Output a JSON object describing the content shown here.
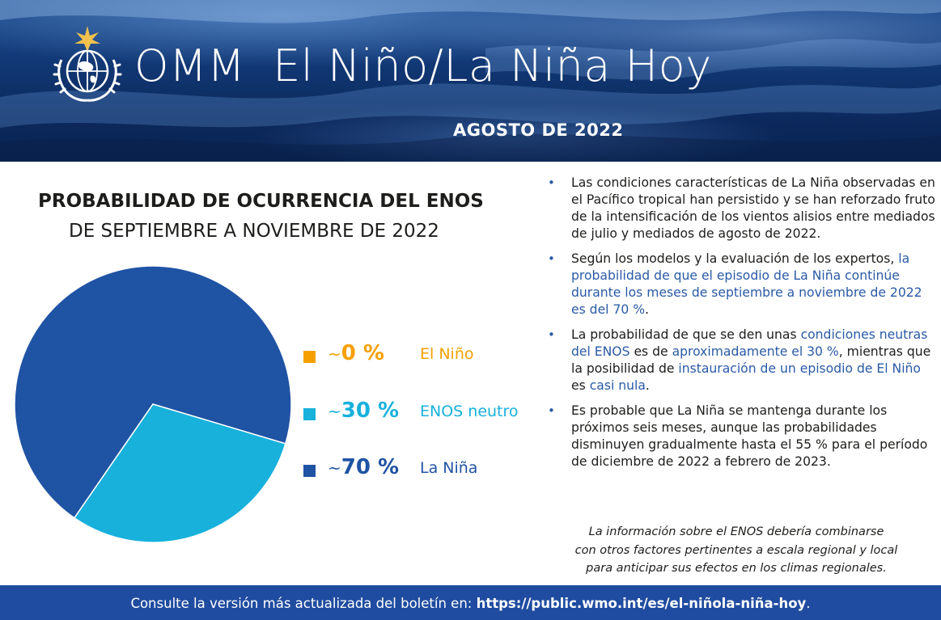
{
  "header": {
    "org": "OMM",
    "title": "El Niño/La Niña Hoy",
    "date": "AGOSTO DE 2022",
    "logo_icon": "wmo-globe-emblem-icon"
  },
  "chart_data": {
    "type": "pie",
    "title": "PROBABILIDAD DE OCURRENCIA DEL ENOS",
    "subtitle": "DE SEPTIEMBRE A NOVIEMBRE DE 2022",
    "slices": [
      {
        "name": "El Niño",
        "value": 0,
        "label": "0 %",
        "color": "#f5a000"
      },
      {
        "name": "ENOS neutro",
        "value": 30,
        "label": "30 %",
        "color": "#17b1dc"
      },
      {
        "name": "La Niña",
        "value": 70,
        "label": "70 %",
        "color": "#1f53a4"
      }
    ],
    "tilde": "~",
    "legend": "right"
  },
  "bullets": [
    {
      "parts": [
        {
          "text": "Las condiciones características de La Niña observadas en el Pacífico tropical han persistido y se han reforzado fruto de la intensificación de los vientos alisios entre mediados de julio y mediados de agosto de 2022.",
          "hl": false
        }
      ]
    },
    {
      "parts": [
        {
          "text": "Según los modelos y la evaluación de los expertos, ",
          "hl": false
        },
        {
          "text": "la probabilidad de que el episodio de La Niña continúe durante los meses de septiembre a noviembre de 2022 es del 70 %",
          "hl": true
        },
        {
          "text": ".",
          "hl": false
        }
      ]
    },
    {
      "parts": [
        {
          "text": "La probabilidad de que se den unas ",
          "hl": false
        },
        {
          "text": "condiciones neutras del ENOS",
          "hl": true
        },
        {
          "text": " es de ",
          "hl": false
        },
        {
          "text": "aproximadamente el 30 %",
          "hl": true
        },
        {
          "text": ", mientras que la posibilidad de ",
          "hl": false
        },
        {
          "text": "instauración de un episodio de El Niño",
          "hl": true
        },
        {
          "text": " es ",
          "hl": false
        },
        {
          "text": "casi nula",
          "hl": true
        },
        {
          "text": ".",
          "hl": false
        }
      ]
    },
    {
      "parts": [
        {
          "text": "Es probable que La Niña se mantenga durante los próximos seis meses, aunque las probabilidades disminuyen gradualmente hasta el 55 % para el período de diciembre de 2022 a febrero de 2023.",
          "hl": false
        }
      ]
    }
  ],
  "note": {
    "line1": "La información sobre el ENOS debería combinarse",
    "line2": "con otros factores pertinentes a escala regional y local",
    "line3": "para anticipar sus efectos en los climas regionales."
  },
  "footer": {
    "prefix": "Consulte la versión más actualizada del boletín en: ",
    "link": "https://public.wmo.int/es/el-niñola-niña-hoy",
    "suffix": "."
  }
}
